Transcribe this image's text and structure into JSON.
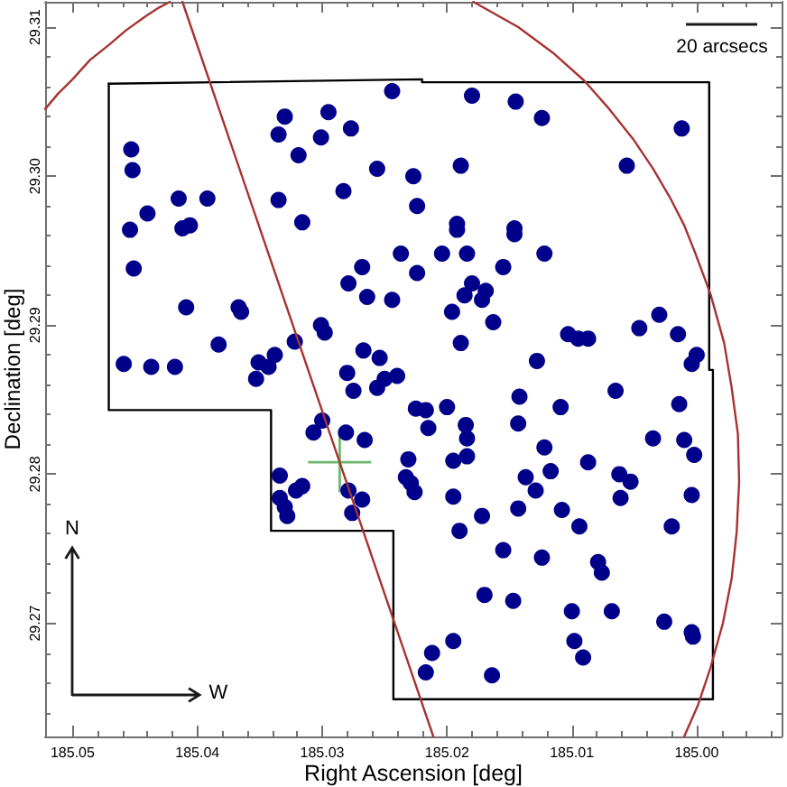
{
  "chart_data": {
    "type": "scatter",
    "xlabel": "Right Ascension [deg]",
    "ylabel": "Declination [deg]",
    "xlim": [
      185.0522,
      184.9932
    ],
    "ylim": [
      29.2624,
      29.3117
    ],
    "xticks": [
      185.05,
      {
        "value": 185.048,
        "label": null
      },
      {
        "value": 185.046,
        "label": null
      },
      {
        "value": 185.044,
        "label": null
      },
      {
        "value": 185.042,
        "label": null
      },
      185.04,
      {
        "value": 185.038,
        "label": null
      },
      {
        "value": 185.036,
        "label": null
      },
      {
        "value": 185.034,
        "label": null
      },
      {
        "value": 185.032,
        "label": null
      },
      185.03,
      {
        "value": 185.028,
        "label": null
      },
      {
        "value": 185.026,
        "label": null
      },
      {
        "value": 185.024,
        "label": null
      },
      {
        "value": 185.022,
        "label": null
      },
      185.02,
      {
        "value": 185.018,
        "label": null
      },
      {
        "value": 185.016,
        "label": null
      },
      {
        "value": 185.014,
        "label": null
      },
      {
        "value": 185.012,
        "label": null
      },
      185.01,
      {
        "value": 185.008,
        "label": null
      },
      {
        "value": 185.006,
        "label": null
      },
      {
        "value": 185.004,
        "label": null
      },
      {
        "value": 185.002,
        "label": null
      },
      {
        "value": 185,
        "label": "185.00"
      },
      {
        "value": 184.998,
        "label": null
      },
      {
        "value": 184.996,
        "label": null
      },
      {
        "value": 184.994,
        "label": null
      }
    ],
    "yticks": [
      {
        "value": 29.264,
        "label": null
      },
      {
        "value": 29.266,
        "label": null
      },
      {
        "value": 29.268,
        "label": null
      },
      29.27,
      {
        "value": 29.272,
        "label": null
      },
      {
        "value": 29.274,
        "label": null
      },
      {
        "value": 29.276,
        "label": null
      },
      {
        "value": 29.278,
        "label": null
      },
      29.28,
      {
        "value": 29.282,
        "label": null
      },
      {
        "value": 29.284,
        "label": null
      },
      {
        "value": 29.286,
        "label": null
      },
      {
        "value": 29.288,
        "label": null
      },
      29.29,
      {
        "value": 29.292,
        "label": null
      },
      {
        "value": 29.294,
        "label": null
      },
      {
        "value": 29.296,
        "label": null
      },
      {
        "value": 29.298,
        "label": null
      },
      {
        "value": 29.3,
        "label": "29.30"
      },
      {
        "value": 29.302,
        "label": null
      },
      {
        "value": 29.304,
        "label": null
      },
      {
        "value": 29.306,
        "label": null
      },
      {
        "value": 29.308,
        "label": null
      },
      29.31
    ],
    "annotations": [
      "20 arcsecs",
      "N",
      "W"
    ],
    "series": [
      {
        "type": "line",
        "color": "#000000",
        "x": [
          184.9987,
          184.9987,
          184.999,
          184.999,
          185.022,
          185.022,
          185.0471
        ],
        "values": [
          29.2649,
          29.287,
          29.287,
          29.3063,
          29.3063,
          29.3065,
          29.3062
        ]
      },
      {
        "type": "line",
        "color": "#000000",
        "x": [
          184.9987,
          185.0243,
          185.0243,
          185.0341,
          185.0341,
          185.0471,
          185.0471
        ],
        "values": [
          29.2649,
          29.2649,
          29.2762,
          29.2762,
          29.2843,
          29.2843,
          29.3062
        ]
      },
      {
        "type": "line",
        "color": "#a83232",
        "x": [
          185.0522,
          185.0512,
          185.05,
          185.0486,
          185.0471,
          185.0457,
          185.0442,
          185.0431,
          185.0422
        ],
        "values": [
          29.3045,
          29.3055,
          29.3065,
          29.3078,
          29.3088,
          29.3098,
          29.3107,
          29.3113,
          29.3117
        ]
      },
      {
        "type": "line",
        "color": "#a83232",
        "x": [
          185.0179,
          185.0143,
          185.0114,
          185.009,
          185.007,
          185.0051,
          185.0035,
          185.0021,
          185.001,
          185.0001,
          184.9989,
          184.9978,
          184.9972,
          184.9967,
          184.9966,
          184.9968,
          184.9972,
          184.9979,
          184.9989,
          184.9999,
          185.001
        ],
        "values": [
          29.3117,
          29.31,
          29.3082,
          29.3064,
          29.3045,
          29.3025,
          29.3005,
          29.2985,
          29.2967,
          29.2948,
          29.2921,
          29.2888,
          29.2858,
          29.2827,
          29.2795,
          29.2761,
          29.273,
          29.27,
          29.267,
          29.2645,
          29.2624
        ]
      },
      {
        "type": "line",
        "color": "#a83232",
        "x": [
          185.0412,
          185.0211
        ],
        "values": [
          29.3117,
          29.2624
        ]
      },
      {
        "color": "#6db86d",
        "marker": "cross",
        "x": [
          185.0286
        ],
        "values": [
          29.2808
        ]
      },
      {
        "color": "#00008b",
        "marker": "circle",
        "x": [
          185.0244,
          185.033,
          185.0295,
          185.0335,
          185.0277,
          185.0301,
          185.0453,
          185.0319,
          185.0452,
          185.0256,
          185.0227,
          185.0415,
          185.0392,
          185.0335,
          185.0283,
          185.0224,
          185.044,
          185.0454,
          185.0412,
          185.0406,
          185.0316,
          185.0237,
          185.0268,
          185.0451,
          185.0224,
          185.0279,
          185.0264,
          185.0244,
          185.0409,
          185.0367,
          185.0365,
          185.0301,
          185.0298,
          185.0383,
          185.0322,
          185.0267,
          185.0254,
          185.0459,
          185.0437,
          185.0418,
          185.0351,
          185.0338,
          185.0343,
          185.028,
          185.0353,
          185.025,
          185.024,
          185.018,
          185.0145,
          185.0124,
          185.0012,
          185.0189,
          185.0056,
          185.0192,
          185.0192,
          185.0146,
          185.0146,
          185.0204,
          185.0184,
          185.0122,
          185.0155,
          185.018,
          185.0186,
          185.0169,
          185.0172,
          185.0196,
          185.0163,
          185.0103,
          185.0095,
          185.0087,
          185.0046,
          185.003,
          185.0015,
          185.0189,
          185.0128,
          185.0004,
          185.0,
          185.0225,
          185.0217,
          185.02,
          185.0215,
          185.0185,
          185.0184,
          185.0184,
          185.0195,
          185.0142,
          185.0143,
          185.0109,
          185.0065,
          185.0014,
          185.0035,
          185.001,
          185.0002,
          185.0122,
          185.0117,
          185.0137,
          185.0129,
          185.0087,
          185.0062,
          185.0053,
          185.0061,
          185.0004,
          185.0231,
          185.0233,
          185.0229,
          185.0226,
          185.0195,
          185.0172,
          185.0143,
          185.0108,
          185.0094,
          185.019,
          185.002,
          185.0155,
          185.0124,
          185.0079,
          185.0076,
          185.017,
          185.0147,
          185.01,
          185.0068,
          185.0026,
          185.0004,
          185.0003,
          185.0195,
          185.0212,
          185.0098,
          185.0091,
          185.0217,
          185.0164,
          185.0275,
          185.0256,
          185.03,
          185.0307,
          185.0281,
          185.0266,
          185.0334,
          185.0321,
          185.0316,
          185.0334,
          185.033,
          185.0328,
          185.0279,
          185.0268,
          185.0276
        ],
        "values": [
          29.3057,
          29.304,
          29.3043,
          29.3028,
          29.3032,
          29.3026,
          29.3018,
          29.3014,
          29.3004,
          29.3005,
          29.3,
          29.2985,
          29.2985,
          29.2984,
          29.299,
          29.298,
          29.2975,
          29.2964,
          29.2965,
          29.2967,
          29.2969,
          29.2948,
          29.2939,
          29.2938,
          29.2935,
          29.2928,
          29.2919,
          29.2917,
          29.2912,
          29.2912,
          29.2909,
          29.29,
          29.2895,
          29.2887,
          29.2889,
          29.2883,
          29.2878,
          29.2874,
          29.2872,
          29.2872,
          29.2875,
          29.288,
          29.2872,
          29.2868,
          29.2864,
          29.2864,
          29.2866,
          29.3054,
          29.305,
          29.3039,
          29.3032,
          29.3007,
          29.3007,
          29.2968,
          29.2964,
          29.2965,
          29.2961,
          29.2948,
          29.2948,
          29.2948,
          29.2939,
          29.2928,
          29.292,
          29.2923,
          29.2917,
          29.2909,
          29.2902,
          29.2894,
          29.2891,
          29.2891,
          29.2898,
          29.2907,
          29.2894,
          29.2888,
          29.2876,
          29.2874,
          29.288,
          29.2844,
          29.2843,
          29.2845,
          29.2831,
          29.2833,
          29.2824,
          29.2812,
          29.2809,
          29.2852,
          29.2834,
          29.2845,
          29.2856,
          29.2847,
          29.2824,
          29.2823,
          29.2813,
          29.2818,
          29.2802,
          29.2798,
          29.2789,
          29.2808,
          29.28,
          29.2795,
          29.2784,
          29.2786,
          29.281,
          29.2798,
          29.2794,
          29.2788,
          29.2785,
          29.2772,
          29.2777,
          29.2776,
          29.2765,
          29.2762,
          29.2765,
          29.2749,
          29.2744,
          29.2741,
          29.2734,
          29.2719,
          29.2715,
          29.2708,
          29.2708,
          29.2701,
          29.2694,
          29.2691,
          29.2688,
          29.268,
          29.2688,
          29.2677,
          29.2667,
          29.2665,
          29.2856,
          29.2858,
          29.2836,
          29.2828,
          29.2828,
          29.2823,
          29.2799,
          29.2789,
          29.2792,
          29.2784,
          29.2778,
          29.2772,
          29.2789,
          29.2783,
          29.2774
        ]
      }
    ]
  }
}
